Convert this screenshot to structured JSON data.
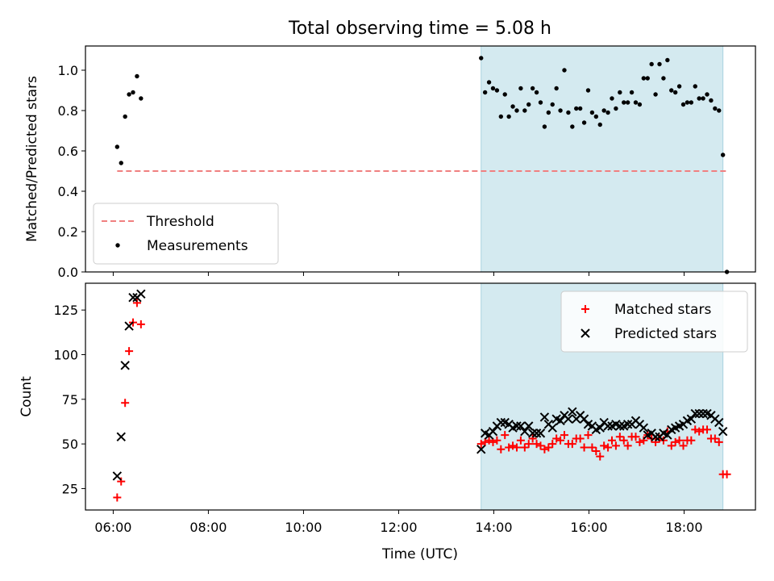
{
  "chart_data": {
    "title": "Total observing time = 5.08 h",
    "xlabel": "Time (UTC)",
    "x_units": "hours UTC",
    "xlim": [
      "05:25",
      "19:30"
    ],
    "x_ticks": [
      "06:00",
      "08:00",
      "10:00",
      "12:00",
      "14:00",
      "16:00",
      "18:00"
    ],
    "shaded_span": {
      "from": "13:44",
      "to": "18:49",
      "color": "#d4eaf0"
    },
    "panels": [
      {
        "type": "scatter",
        "ylabel": "Matched/Predicted stars",
        "ylim": [
          0,
          1.12
        ],
        "y_ticks": [
          "0.0",
          "0.2",
          "0.4",
          "0.6",
          "0.8",
          "1.0"
        ],
        "legend_position": "lower-left",
        "threshold": {
          "name": "Threshold",
          "value": 0.5,
          "from": "06:05",
          "to": "18:55",
          "color": "#f08080",
          "style": "dashed"
        },
        "series": [
          {
            "name": "Measurements",
            "color": "#000000",
            "marker": "dot",
            "points": [
              [
                "06:05",
                0.62
              ],
              [
                "06:10",
                0.54
              ],
              [
                "06:15",
                0.77
              ],
              [
                "06:20",
                0.88
              ],
              [
                "06:25",
                0.89
              ],
              [
                "06:30",
                0.97
              ],
              [
                "06:35",
                0.86
              ],
              [
                "13:44",
                1.06
              ],
              [
                "13:49",
                0.89
              ],
              [
                "13:54",
                0.94
              ],
              [
                "13:59",
                0.91
              ],
              [
                "14:04",
                0.9
              ],
              [
                "14:09",
                0.77
              ],
              [
                "14:14",
                0.88
              ],
              [
                "14:19",
                0.77
              ],
              [
                "14:24",
                0.82
              ],
              [
                "14:29",
                0.8
              ],
              [
                "14:34",
                0.91
              ],
              [
                "14:39",
                0.8
              ],
              [
                "14:44",
                0.83
              ],
              [
                "14:49",
                0.91
              ],
              [
                "14:54",
                0.89
              ],
              [
                "14:59",
                0.84
              ],
              [
                "15:04",
                0.72
              ],
              [
                "15:09",
                0.79
              ],
              [
                "15:14",
                0.83
              ],
              [
                "15:19",
                0.91
              ],
              [
                "15:24",
                0.8
              ],
              [
                "15:29",
                1.0
              ],
              [
                "15:34",
                0.79
              ],
              [
                "15:39",
                0.72
              ],
              [
                "15:44",
                0.81
              ],
              [
                "15:49",
                0.81
              ],
              [
                "15:54",
                0.74
              ],
              [
                "15:59",
                0.9
              ],
              [
                "16:04",
                0.79
              ],
              [
                "16:09",
                0.77
              ],
              [
                "16:14",
                0.73
              ],
              [
                "16:19",
                0.8
              ],
              [
                "16:24",
                0.79
              ],
              [
                "16:29",
                0.86
              ],
              [
                "16:34",
                0.81
              ],
              [
                "16:39",
                0.89
              ],
              [
                "16:44",
                0.84
              ],
              [
                "16:49",
                0.84
              ],
              [
                "16:54",
                0.89
              ],
              [
                "16:59",
                0.84
              ],
              [
                "17:04",
                0.83
              ],
              [
                "17:09",
                0.96
              ],
              [
                "17:14",
                0.96
              ],
              [
                "17:19",
                1.03
              ],
              [
                "17:24",
                0.88
              ],
              [
                "17:29",
                1.03
              ],
              [
                "17:34",
                0.96
              ],
              [
                "17:39",
                1.05
              ],
              [
                "17:44",
                0.9
              ],
              [
                "17:49",
                0.89
              ],
              [
                "17:54",
                0.92
              ],
              [
                "17:59",
                0.83
              ],
              [
                "18:04",
                0.84
              ],
              [
                "18:09",
                0.84
              ],
              [
                "18:14",
                0.92
              ],
              [
                "18:19",
                0.86
              ],
              [
                "18:24",
                0.86
              ],
              [
                "18:29",
                0.88
              ],
              [
                "18:34",
                0.85
              ],
              [
                "18:39",
                0.81
              ],
              [
                "18:44",
                0.8
              ],
              [
                "18:49",
                0.58
              ],
              [
                "18:54",
                0.0
              ]
            ]
          }
        ]
      },
      {
        "type": "scatter",
        "ylabel": "Count",
        "ylim": [
          13,
          140
        ],
        "y_ticks": [
          "25",
          "50",
          "75",
          "100",
          "125"
        ],
        "legend_position": "upper-right",
        "series": [
          {
            "name": "Matched stars",
            "color": "#ff0000",
            "marker": "plus",
            "points": [
              [
                "06:05",
                20
              ],
              [
                "06:10",
                29
              ],
              [
                "06:15",
                73
              ],
              [
                "06:20",
                102
              ],
              [
                "06:25",
                118
              ],
              [
                "06:30",
                129
              ],
              [
                "06:35",
                117
              ],
              [
                "13:44",
                50
              ],
              [
                "13:49",
                51
              ],
              [
                "13:54",
                52
              ],
              [
                "13:59",
                51
              ],
              [
                "14:04",
                52
              ],
              [
                "14:09",
                47
              ],
              [
                "14:14",
                55
              ],
              [
                "14:19",
                48
              ],
              [
                "14:24",
                49
              ],
              [
                "14:29",
                48
              ],
              [
                "14:34",
                52
              ],
              [
                "14:39",
                48
              ],
              [
                "14:44",
                50
              ],
              [
                "14:49",
                53
              ],
              [
                "14:54",
                50
              ],
              [
                "14:59",
                49
              ],
              [
                "15:04",
                47
              ],
              [
                "15:09",
                48
              ],
              [
                "15:14",
                50
              ],
              [
                "15:19",
                53
              ],
              [
                "15:24",
                52
              ],
              [
                "15:29",
                55
              ],
              [
                "15:34",
                50
              ],
              [
                "15:39",
                50
              ],
              [
                "15:44",
                53
              ],
              [
                "15:49",
                53
              ],
              [
                "15:54",
                48
              ],
              [
                "15:59",
                55
              ],
              [
                "16:04",
                48
              ],
              [
                "16:09",
                46
              ],
              [
                "16:14",
                43
              ],
              [
                "16:19",
                49
              ],
              [
                "16:24",
                48
              ],
              [
                "16:29",
                52
              ],
              [
                "16:34",
                49
              ],
              [
                "16:39",
                54
              ],
              [
                "16:44",
                52
              ],
              [
                "16:49",
                49
              ],
              [
                "16:54",
                54
              ],
              [
                "16:59",
                54
              ],
              [
                "17:04",
                51
              ],
              [
                "17:09",
                52
              ],
              [
                "17:14",
                55
              ],
              [
                "17:19",
                53
              ],
              [
                "17:24",
                51
              ],
              [
                "17:29",
                53
              ],
              [
                "17:34",
                52
              ],
              [
                "17:39",
                57
              ],
              [
                "17:44",
                49
              ],
              [
                "17:49",
                51
              ],
              [
                "17:54",
                52
              ],
              [
                "17:59",
                49
              ],
              [
                "18:04",
                52
              ],
              [
                "18:09",
                52
              ],
              [
                "18:14",
                58
              ],
              [
                "18:19",
                57
              ],
              [
                "18:24",
                58
              ],
              [
                "18:29",
                58
              ],
              [
                "18:34",
                53
              ],
              [
                "18:39",
                53
              ],
              [
                "18:44",
                51
              ],
              [
                "18:49",
                33
              ],
              [
                "18:54",
                33
              ]
            ]
          },
          {
            "name": "Predicted stars",
            "color": "#000000",
            "marker": "x",
            "points": [
              [
                "06:05",
                32
              ],
              [
                "06:10",
                54
              ],
              [
                "06:15",
                94
              ],
              [
                "06:20",
                116
              ],
              [
                "06:25",
                132
              ],
              [
                "06:30",
                132
              ],
              [
                "06:35",
                134
              ],
              [
                "13:44",
                47
              ],
              [
                "13:49",
                56
              ],
              [
                "13:54",
                55
              ],
              [
                "13:59",
                57
              ],
              [
                "14:04",
                60
              ],
              [
                "14:09",
                62
              ],
              [
                "14:14",
                62
              ],
              [
                "14:19",
                61
              ],
              [
                "14:24",
                59
              ],
              [
                "14:29",
                60
              ],
              [
                "14:34",
                60
              ],
              [
                "14:39",
                57
              ],
              [
                "14:44",
                60
              ],
              [
                "14:49",
                56
              ],
              [
                "14:54",
                56
              ],
              [
                "14:59",
                56
              ],
              [
                "15:04",
                65
              ],
              [
                "15:09",
                61
              ],
              [
                "15:14",
                59
              ],
              [
                "15:19",
                64
              ],
              [
                "15:24",
                63
              ],
              [
                "15:29",
                66
              ],
              [
                "15:34",
                64
              ],
              [
                "15:39",
                68
              ],
              [
                "15:44",
                64
              ],
              [
                "15:49",
                66
              ],
              [
                "15:54",
                64
              ],
              [
                "15:59",
                61
              ],
              [
                "16:04",
                60
              ],
              [
                "16:09",
                58
              ],
              [
                "16:14",
                59
              ],
              [
                "16:19",
                62
              ],
              [
                "16:24",
                60
              ],
              [
                "16:29",
                60
              ],
              [
                "16:34",
                61
              ],
              [
                "16:39",
                60
              ],
              [
                "16:44",
                60
              ],
              [
                "16:49",
                61
              ],
              [
                "16:54",
                61
              ],
              [
                "16:59",
                63
              ],
              [
                "17:04",
                61
              ],
              [
                "17:09",
                59
              ],
              [
                "17:14",
                55
              ],
              [
                "17:19",
                56
              ],
              [
                "17:24",
                54
              ],
              [
                "17:29",
                54
              ],
              [
                "17:34",
                56
              ],
              [
                "17:39",
                55
              ],
              [
                "17:44",
                58
              ],
              [
                "17:49",
                59
              ],
              [
                "17:54",
                60
              ],
              [
                "17:59",
                61
              ],
              [
                "18:04",
                63
              ],
              [
                "18:09",
                64
              ],
              [
                "18:14",
                67
              ],
              [
                "18:19",
                67
              ],
              [
                "18:24",
                67
              ],
              [
                "18:29",
                67
              ],
              [
                "18:34",
                66
              ],
              [
                "18:39",
                64
              ],
              [
                "18:44",
                62
              ],
              [
                "18:49",
                57
              ]
            ]
          }
        ]
      }
    ]
  }
}
